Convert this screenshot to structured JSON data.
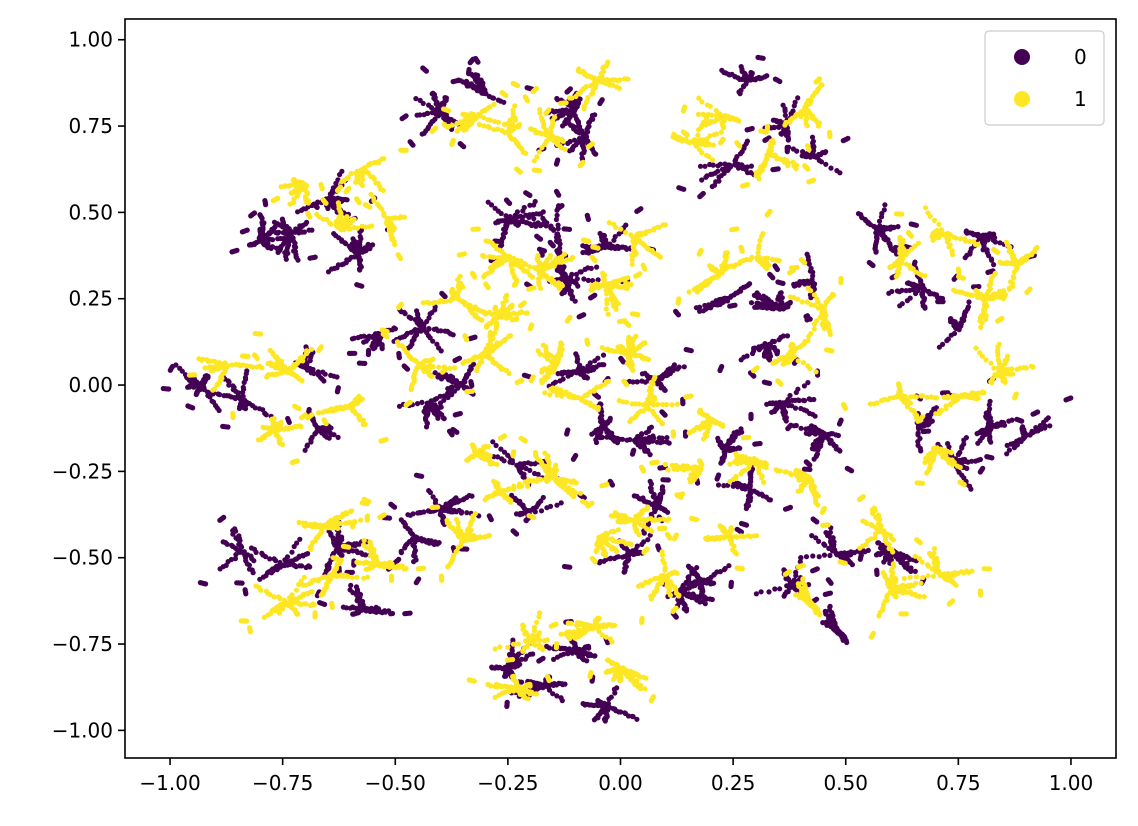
{
  "chart_data": {
    "type": "scatter",
    "title": "",
    "xlabel": "",
    "ylabel": "",
    "xlim": [
      -1.1,
      1.1
    ],
    "ylim": [
      -1.08,
      1.06
    ],
    "xticks": [
      -1.0,
      -0.75,
      -0.5,
      -0.25,
      0.0,
      0.25,
      0.5,
      0.75,
      1.0
    ],
    "xtick_labels": [
      "−1.00",
      "−0.75",
      "−0.50",
      "−0.25",
      "0.00",
      "0.25",
      "0.50",
      "0.75",
      "1.00"
    ],
    "yticks": [
      1.0,
      0.75,
      0.5,
      0.25,
      0.0,
      -0.25,
      -0.5,
      -0.75,
      -1.0
    ],
    "ytick_labels": [
      "1.00",
      "0.75",
      "0.50",
      "0.25",
      "0.00",
      "−0.25",
      "−0.50",
      "−0.75",
      "−1.00"
    ],
    "grid": false,
    "legend": {
      "position": "top-right",
      "entries": [
        "0",
        "1"
      ]
    },
    "colors": {
      "0": "#440154",
      "1": "#fde725"
    },
    "series": [
      {
        "name": "0",
        "color": "#440154",
        "clusters": [
          [
            -0.3,
            0.84
          ],
          [
            -0.1,
            0.8
          ],
          [
            -0.08,
            0.72
          ],
          [
            -0.4,
            0.79
          ],
          [
            0.28,
            0.88
          ],
          [
            0.37,
            0.75
          ],
          [
            0.25,
            0.64
          ],
          [
            0.43,
            0.66
          ],
          [
            -0.65,
            0.54
          ],
          [
            -0.58,
            0.38
          ],
          [
            -0.73,
            0.44
          ],
          [
            -0.8,
            0.42
          ],
          [
            -0.14,
            0.44
          ],
          [
            -0.12,
            0.31
          ],
          [
            -0.03,
            0.4
          ],
          [
            -0.25,
            0.48
          ],
          [
            0.24,
            0.25
          ],
          [
            0.36,
            0.22
          ],
          [
            0.43,
            0.3
          ],
          [
            0.33,
            0.12
          ],
          [
            0.8,
            0.43
          ],
          [
            0.67,
            0.28
          ],
          [
            0.57,
            0.45
          ],
          [
            0.75,
            0.16
          ],
          [
            -0.44,
            0.17
          ],
          [
            -0.53,
            0.15
          ],
          [
            -0.35,
            0.0
          ],
          [
            -0.43,
            -0.05
          ],
          [
            -0.04,
            -0.12
          ],
          [
            0.08,
            0.01
          ],
          [
            -0.09,
            0.04
          ],
          [
            0.03,
            -0.16
          ],
          [
            -0.84,
            -0.04
          ],
          [
            -0.67,
            -0.13
          ],
          [
            -0.93,
            0.0
          ],
          [
            -0.7,
            0.05
          ],
          [
            0.36,
            -0.05
          ],
          [
            0.23,
            -0.19
          ],
          [
            0.45,
            -0.14
          ],
          [
            0.29,
            -0.3
          ],
          [
            0.66,
            -0.13
          ],
          [
            0.82,
            -0.12
          ],
          [
            0.9,
            -0.15
          ],
          [
            0.74,
            -0.23
          ],
          [
            -0.4,
            -0.36
          ],
          [
            -0.2,
            -0.37
          ],
          [
            -0.23,
            -0.23
          ],
          [
            -0.46,
            -0.44
          ],
          [
            0.02,
            -0.49
          ],
          [
            0.13,
            -0.6
          ],
          [
            0.08,
            -0.35
          ],
          [
            0.18,
            -0.57
          ],
          [
            -0.75,
            -0.52
          ],
          [
            -0.57,
            -0.65
          ],
          [
            -0.63,
            -0.47
          ],
          [
            -0.84,
            -0.48
          ],
          [
            0.48,
            -0.49
          ],
          [
            0.48,
            -0.71
          ],
          [
            0.38,
            -0.58
          ],
          [
            0.6,
            -0.48
          ],
          [
            -0.1,
            -0.77
          ],
          [
            -0.17,
            -0.87
          ],
          [
            -0.03,
            -0.93
          ],
          [
            -0.25,
            -0.82
          ]
        ]
      },
      {
        "name": "1",
        "color": "#fde725",
        "clusters": [
          [
            -0.25,
            0.73
          ],
          [
            -0.05,
            0.88
          ],
          [
            -0.16,
            0.72
          ],
          [
            -0.32,
            0.78
          ],
          [
            0.23,
            0.78
          ],
          [
            0.33,
            0.67
          ],
          [
            0.16,
            0.7
          ],
          [
            0.41,
            0.8
          ],
          [
            -0.62,
            0.45
          ],
          [
            -0.57,
            0.63
          ],
          [
            -0.52,
            0.48
          ],
          [
            -0.7,
            0.58
          ],
          [
            -0.25,
            0.37
          ],
          [
            0.03,
            0.43
          ],
          [
            -0.03,
            0.29
          ],
          [
            -0.18,
            0.33
          ],
          [
            0.3,
            0.37
          ],
          [
            0.38,
            0.09
          ],
          [
            0.45,
            0.22
          ],
          [
            0.22,
            0.32
          ],
          [
            0.72,
            0.44
          ],
          [
            0.81,
            0.25
          ],
          [
            0.62,
            0.36
          ],
          [
            0.88,
            0.35
          ],
          [
            -0.36,
            0.25
          ],
          [
            -0.3,
            0.09
          ],
          [
            -0.45,
            0.06
          ],
          [
            -0.27,
            0.2
          ],
          [
            -0.09,
            -0.04
          ],
          [
            0.02,
            0.09
          ],
          [
            -0.14,
            0.06
          ],
          [
            0.06,
            -0.06
          ],
          [
            -0.77,
            -0.13
          ],
          [
            -0.74,
            0.04
          ],
          [
            -0.87,
            0.06
          ],
          [
            -0.6,
            -0.06
          ],
          [
            0.2,
            -0.1
          ],
          [
            0.3,
            -0.22
          ],
          [
            0.42,
            -0.27
          ],
          [
            0.18,
            -0.24
          ],
          [
            0.76,
            -0.03
          ],
          [
            0.7,
            -0.18
          ],
          [
            0.84,
            0.04
          ],
          [
            0.62,
            -0.03
          ],
          [
            -0.32,
            -0.2
          ],
          [
            -0.27,
            -0.31
          ],
          [
            -0.35,
            -0.45
          ],
          [
            -0.15,
            -0.27
          ],
          [
            0.03,
            -0.39
          ],
          [
            0.24,
            -0.44
          ],
          [
            0.1,
            -0.55
          ],
          [
            -0.05,
            -0.44
          ],
          [
            -0.66,
            -0.41
          ],
          [
            -0.64,
            -0.55
          ],
          [
            -0.74,
            -0.63
          ],
          [
            -0.54,
            -0.52
          ],
          [
            0.6,
            -0.59
          ],
          [
            0.58,
            -0.42
          ],
          [
            0.71,
            -0.55
          ],
          [
            0.42,
            -0.63
          ],
          [
            -0.2,
            -0.74
          ],
          [
            0.0,
            -0.82
          ],
          [
            -0.23,
            -0.88
          ],
          [
            -0.06,
            -0.7
          ]
        ]
      }
    ]
  }
}
